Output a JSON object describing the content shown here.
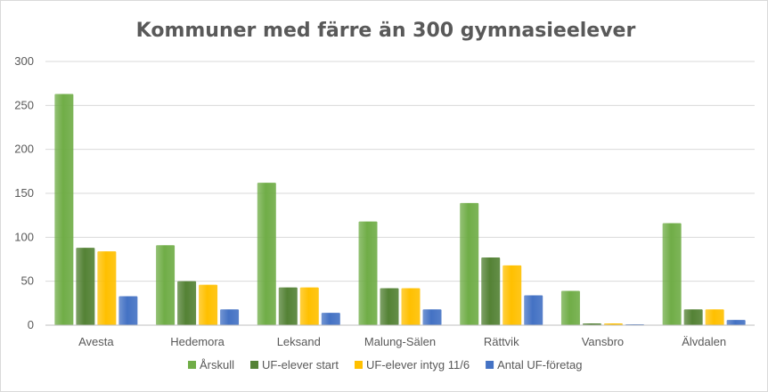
{
  "chart_data": {
    "type": "bar",
    "title": "Kommuner med färre än 300 gymnasieelever",
    "xlabel": "",
    "ylabel": "",
    "ylim": [
      0,
      300
    ],
    "yticks": [
      0,
      50,
      100,
      150,
      200,
      250,
      300
    ],
    "grid": true,
    "legend_position": "bottom",
    "categories": [
      "Avesta",
      "Hedemora",
      "Leksand",
      "Malung-Sälen",
      "Rättvik",
      "Vansbro",
      "Älvdalen"
    ],
    "series": [
      {
        "name": "Årskull",
        "color": "#70ad47",
        "values": [
          263,
          91,
          162,
          118,
          139,
          39,
          116
        ]
      },
      {
        "name": "UF-elever start",
        "color": "#548235",
        "values": [
          88,
          50,
          43,
          42,
          77,
          2,
          18
        ]
      },
      {
        "name": "UF-elever intyg 11/6",
        "color": "#ffc000",
        "values": [
          84,
          46,
          43,
          42,
          68,
          2,
          18
        ]
      },
      {
        "name": "Antal UF-företag",
        "color": "#4472c4",
        "values": [
          33,
          18,
          14,
          18,
          34,
          1,
          6
        ]
      }
    ]
  }
}
